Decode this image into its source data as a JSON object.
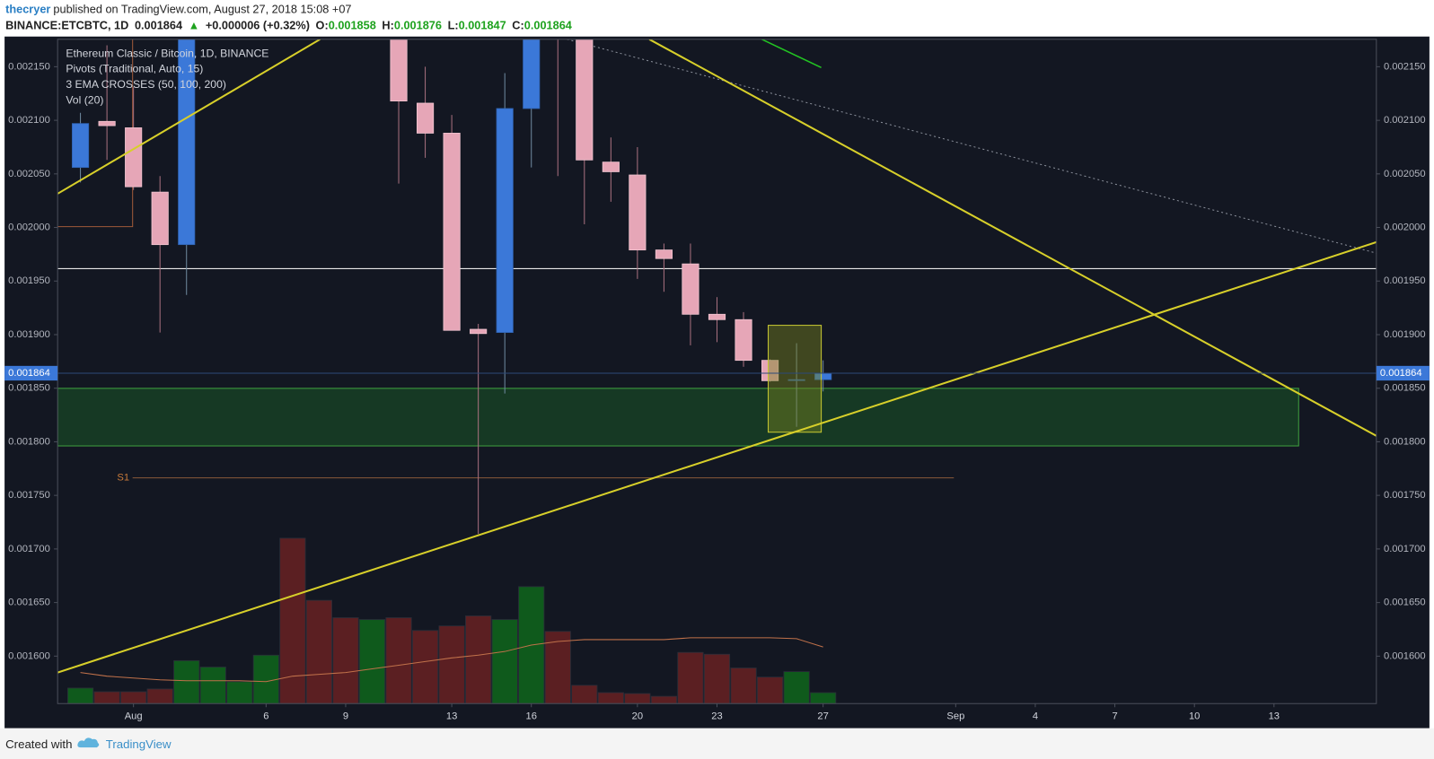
{
  "header": {
    "author": "thecryer",
    "published": "published on TradingView.com, August 27, 2018 15:08 +07",
    "symbol": "BINANCE:ETCBTC, 1D",
    "arrow": "▲",
    "change": "+0.000006 (+0.32%)",
    "o_label": "O:",
    "h_label": "H:",
    "l_label": "L:",
    "c_label": "C:"
  },
  "footer": {
    "created": "Created with",
    "brand": "TradingView"
  },
  "chart_data": {
    "type": "candlestick",
    "title": "Ethereum Classic / Bitcoin, 1D, BINANCE",
    "indicators": [
      "Pivots (Traditional, Auto, 15)",
      "3 EMA CROSSES (50, 100, 200)",
      "Vol (20)"
    ],
    "pivot_label": "S1",
    "x": [
      -1,
      0,
      1,
      2,
      3,
      4,
      5,
      6,
      7,
      8,
      9,
      10,
      11,
      12,
      13,
      14,
      15,
      16,
      17,
      18,
      19,
      20,
      21,
      22,
      23,
      24,
      25,
      26,
      27
    ],
    "open": [
      0.002056,
      0.002099,
      0.002093,
      0.002033,
      0.001984,
      null,
      null,
      null,
      null,
      null,
      null,
      null,
      0.0022,
      0.002116,
      0.002088,
      0.001905,
      0.001902,
      0.002111,
      0.00225,
      0.0022,
      0.002061,
      0.002049,
      0.001979,
      0.001966,
      0.001919,
      0.001914,
      0.001876,
      0.001858,
      0.001858
    ],
    "high": [
      0.002107,
      0.00217,
      0.002131,
      0.002048,
      0.00219,
      null,
      null,
      null,
      null,
      null,
      null,
      null,
      0.00222,
      0.00215,
      0.002105,
      0.00191,
      0.002144,
      0.0022,
      0.00226,
      0.00222,
      0.002084,
      0.002075,
      0.001985,
      0.001985,
      0.001935,
      0.001921,
      0.001877,
      0.001892,
      0.001876
    ],
    "low": [
      0.002042,
      0.002063,
      0.002035,
      0.001902,
      0.001937,
      null,
      null,
      null,
      null,
      null,
      null,
      null,
      0.002041,
      0.002065,
      0.001904,
      0.001714,
      0.001845,
      0.002056,
      0.002048,
      0.002003,
      0.002024,
      0.001952,
      0.00194,
      0.00189,
      0.001893,
      0.00187,
      0.001856,
      0.001814,
      0.001847
    ],
    "close": [
      0.002097,
      0.002095,
      0.002038,
      0.001984,
      0.00218,
      null,
      null,
      null,
      null,
      null,
      null,
      null,
      0.002118,
      0.002088,
      0.001904,
      0.001901,
      0.002111,
      0.00219,
      0.00219,
      0.002063,
      0.002052,
      0.001979,
      0.001971,
      0.001919,
      0.001914,
      0.001876,
      0.001857,
      0.001858,
      0.001864
    ],
    "up_color": "#3b78d8",
    "down_color": "#e6a6b7",
    "volume": {
      "values": [
        17,
        13,
        13,
        16,
        47,
        40,
        24,
        53,
        181,
        113,
        94,
        92,
        94,
        80,
        85,
        96,
        92,
        128,
        79,
        20,
        12,
        11,
        8,
        56,
        54,
        39,
        29,
        35,
        12
      ],
      "colors": [
        "#0f5a1c",
        "#5b1f22",
        "#5b1f22",
        "#5b1f22",
        "#0f5a1c",
        "#0f5a1c",
        "#0f5a1c",
        "#0f5a1c",
        "#5b1f22",
        "#5b1f22",
        "#5b1f22",
        "#0f5a1c",
        "#5b1f22",
        "#5b1f22",
        "#5b1f22",
        "#5b1f22",
        "#0f5a1c",
        "#0f5a1c",
        "#5b1f22",
        "#5b1f22",
        "#5b1f22",
        "#5b1f22",
        "#5b1f22",
        "#5b1f22",
        "#5b1f22",
        "#5b1f22",
        "#5b1f22",
        "#0f5a1c",
        "#0f5a1c"
      ],
      "ma": [
        34,
        30,
        28,
        26,
        25,
        25,
        25,
        24,
        30,
        32,
        34,
        38,
        42,
        46,
        50,
        53,
        57,
        64,
        68,
        70,
        70,
        70,
        70,
        72,
        72,
        72,
        72,
        71,
        62
      ],
      "ma_color": "#c0714a",
      "ylim": [
        0,
        200
      ]
    },
    "xlim": [
      -1.86,
      47.86
    ],
    "xticks": [
      {
        "value": 1,
        "label": "Aug"
      },
      6,
      9,
      13,
      16,
      20,
      23,
      27,
      {
        "value": 32,
        "label": "Sep"
      },
      {
        "value": 35,
        "label": "4"
      },
      {
        "value": 38,
        "label": "7"
      },
      {
        "value": 41,
        "label": "10"
      },
      {
        "value": 44,
        "label": "13"
      }
    ],
    "ylim": [
      0.0015557,
      0.0021756
    ],
    "yticks": [
      {
        "value": 0.0016,
        "label": "0.001600"
      },
      {
        "value": 0.00165,
        "label": "0.001650"
      },
      {
        "value": 0.0017,
        "label": "0.001700"
      },
      {
        "value": 0.00175,
        "label": "0.001750"
      },
      {
        "value": 0.0018,
        "label": "0.001800"
      },
      {
        "value": 0.00185,
        "label": "0.001850"
      },
      {
        "value": 0.0019,
        "label": "0.001900"
      },
      {
        "value": 0.00195,
        "label": "0.001950"
      },
      {
        "value": 0.002,
        "label": "0.002000"
      },
      {
        "value": 0.00205,
        "label": "0.002050"
      },
      {
        "value": 0.0021,
        "label": "0.002100"
      },
      {
        "value": 0.00215,
        "label": "0.002150"
      }
    ],
    "grid": false
  }
}
